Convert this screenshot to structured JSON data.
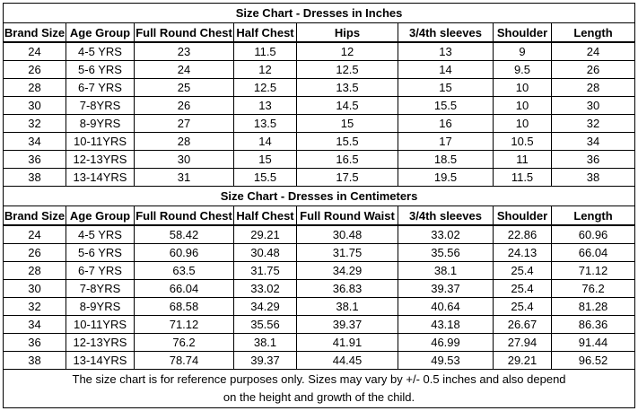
{
  "tables": [
    {
      "title": "Size Chart - Dresses in Inches",
      "headers": [
        "Brand Size",
        "Age Group",
        "Full Round Chest",
        "Half Chest",
        "Hips",
        "3/4th sleeves",
        "Shoulder",
        "Length"
      ],
      "rows": [
        [
          "24",
          "4-5 YRS",
          "23",
          "11.5",
          "12",
          "13",
          "9",
          "24"
        ],
        [
          "26",
          "5-6 YRS",
          "24",
          "12",
          "12.5",
          "14",
          "9.5",
          "26"
        ],
        [
          "28",
          "6-7 YRS",
          "25",
          "12.5",
          "13.5",
          "15",
          "10",
          "28"
        ],
        [
          "30",
          "7-8YRS",
          "26",
          "13",
          "14.5",
          "15.5",
          "10",
          "30"
        ],
        [
          "32",
          "8-9YRS",
          "27",
          "13.5",
          "15",
          "16",
          "10",
          "32"
        ],
        [
          "34",
          "10-11YRS",
          "28",
          "14",
          "15.5",
          "17",
          "10.5",
          "34"
        ],
        [
          "36",
          "12-13YRS",
          "30",
          "15",
          "16.5",
          "18.5",
          "11",
          "36"
        ],
        [
          "38",
          "13-14YRS",
          "31",
          "15.5",
          "17.5",
          "19.5",
          "11.5",
          "38"
        ]
      ]
    },
    {
      "title": "Size Chart - Dresses in Centimeters",
      "headers": [
        "Brand Size",
        "Age Group",
        "Full Round Chest",
        "Half Chest",
        "Full Round Waist",
        "3/4th sleeves",
        "Shoulder",
        "Length"
      ],
      "rows": [
        [
          "24",
          "4-5 YRS",
          "58.42",
          "29.21",
          "30.48",
          "33.02",
          "22.86",
          "60.96"
        ],
        [
          "26",
          "5-6 YRS",
          "60.96",
          "30.48",
          "31.75",
          "35.56",
          "24.13",
          "66.04"
        ],
        [
          "28",
          "6-7 YRS",
          "63.5",
          "31.75",
          "34.29",
          "38.1",
          "25.4",
          "71.12"
        ],
        [
          "30",
          "7-8YRS",
          "66.04",
          "33.02",
          "36.83",
          "39.37",
          "25.4",
          "76.2"
        ],
        [
          "32",
          "8-9YRS",
          "68.58",
          "34.29",
          "38.1",
          "40.64",
          "25.4",
          "81.28"
        ],
        [
          "34",
          "10-11YRS",
          "71.12",
          "35.56",
          "39.37",
          "43.18",
          "26.67",
          "86.36"
        ],
        [
          "36",
          "12-13YRS",
          "76.2",
          "38.1",
          "41.91",
          "46.99",
          "27.94",
          "91.44"
        ],
        [
          "38",
          "13-14YRS",
          "78.74",
          "39.37",
          "44.45",
          "49.53",
          "29.21",
          "96.52"
        ]
      ]
    }
  ],
  "note": [
    "The size chart is for reference purposes only. Sizes may vary by +/- 0.5 inches and also depend",
    "on the height and growth of the child."
  ]
}
